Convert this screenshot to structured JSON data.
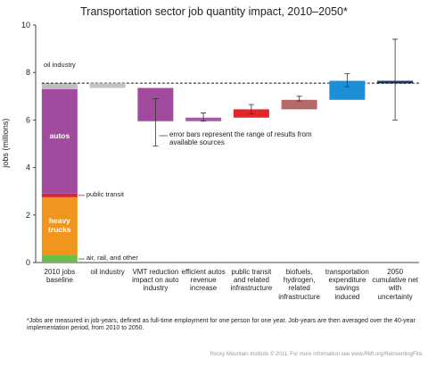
{
  "chart_data": {
    "type": "waterfall",
    "title": "Transportation sector job quantity impact, 2010–2050*",
    "y_label": "jobs (millions)",
    "ylim": [
      0,
      10
    ],
    "yticks": [
      0,
      2,
      4,
      6,
      8,
      10
    ],
    "categories": [
      "2010 jobs baseline",
      "oil industry",
      "VMT reduction impact on auto industry",
      "efficient autos revenue increase",
      "public transit and related infrastructure",
      "biofuels, hydrogen, related infrastructure",
      "transportation expenditure savings induced",
      "2050 cumulative net with uncertainty"
    ],
    "baseline_segments": [
      {
        "name": "air, rail, and other",
        "color": "#6dbf4b",
        "value": 0.3
      },
      {
        "name": "heavy trucks",
        "color": "#f0961e",
        "value": 2.45
      },
      {
        "name": "public transit",
        "color": "#d7262e",
        "value": 0.15
      },
      {
        "name": "autos",
        "color": "#a24a9e",
        "value": 4.4
      },
      {
        "name": "oil industry",
        "color": "#bfbfbf",
        "value": 0.25
      }
    ],
    "steps": [
      {
        "value": -0.2,
        "color": "#c4c4c4"
      },
      {
        "value": -1.4,
        "color": "#a24a9e",
        "error": [
          4.9,
          6.9
        ]
      },
      {
        "value": 0.15,
        "color": "#a65aa4",
        "error": [
          5.95,
          6.3
        ]
      },
      {
        "value": 0.35,
        "color": "#e0262b",
        "error": [
          6.25,
          6.65
        ]
      },
      {
        "value": 0.4,
        "color": "#b46a6a",
        "error": [
          6.8,
          7.0
        ]
      },
      {
        "value": 0.8,
        "color": "#1e8fd6",
        "error": [
          7.4,
          7.95
        ]
      }
    ],
    "net": {
      "value": 0.1,
      "color": "#1b3a6b",
      "error": [
        6.0,
        9.4
      ]
    },
    "annotation": "error bars represent the range of results from available sources",
    "footnote": "*Jobs are measured in job-years, defined as full-time employment for one person for one year. Job-years are then averaged over the 40-year implementation period, from 2010 to 2050.",
    "credit": "Rocky Mountain Institute © 2011. For more information see www.RMI.org/ReinventingFire."
  }
}
